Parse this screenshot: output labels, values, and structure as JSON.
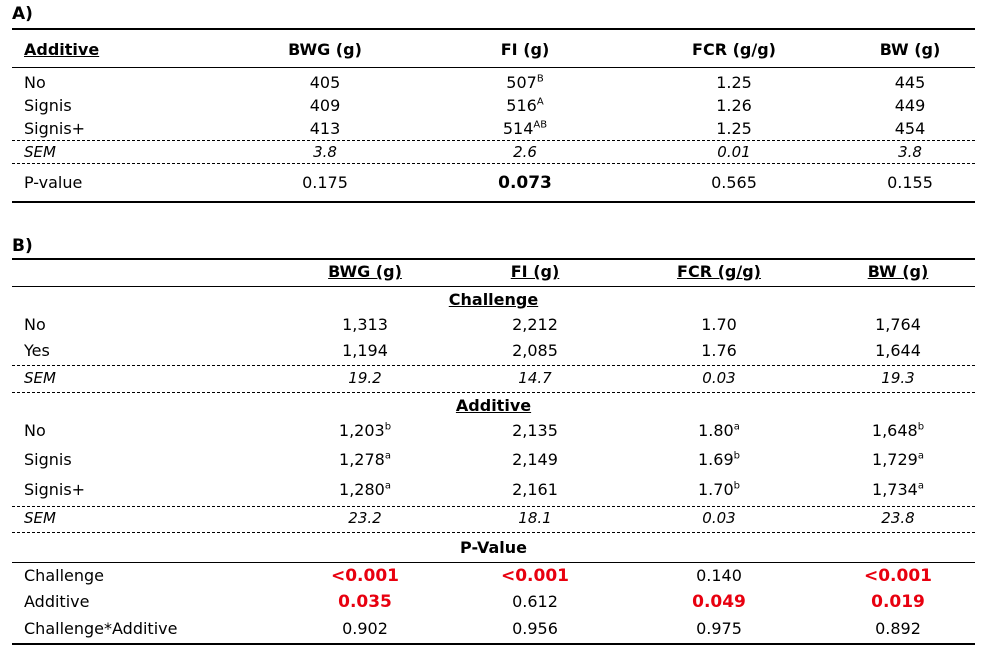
{
  "tableA": {
    "label": "A)",
    "headers": [
      "Additive",
      "BWG (g)",
      "FI (g)",
      "FCR (g/g)",
      "BW (g)"
    ],
    "rows": [
      {
        "name": "No",
        "bwg": "405",
        "fi": "507",
        "fi_sup": "B",
        "fcr": "1.25",
        "bw": "445"
      },
      {
        "name": "Signis",
        "bwg": "409",
        "fi": "516",
        "fi_sup": "A",
        "fcr": "1.26",
        "bw": "449"
      },
      {
        "name": "Signis+",
        "bwg": "413",
        "fi": "514",
        "fi_sup": "AB",
        "fcr": "1.25",
        "bw": "454"
      }
    ],
    "sem": {
      "name": "SEM",
      "bwg": "3.8",
      "fi": "2.6",
      "fcr": "0.01",
      "bw": "3.8"
    },
    "pvalue": {
      "name": "P-value",
      "bwg": "0.175",
      "fi": "0.073",
      "fcr": "0.565",
      "bw": "0.155"
    }
  },
  "tableB": {
    "label": "B)",
    "headers": [
      "BWG (g)",
      "FI (g)",
      "FCR (g/g)",
      "BW (g)"
    ],
    "challenge": {
      "title": "Challenge",
      "rows": [
        {
          "name": "No",
          "bwg": "1,313",
          "fi": "2,212",
          "fcr": "1.70",
          "bw": "1,764"
        },
        {
          "name": "Yes",
          "bwg": "1,194",
          "fi": "2,085",
          "fcr": "1.76",
          "bw": "1,644"
        }
      ],
      "sem": {
        "name": "SEM",
        "bwg": "19.2",
        "fi": "14.7",
        "fcr": "0.03",
        "bw": "19.3"
      }
    },
    "additive": {
      "title": "Additive",
      "rows": [
        {
          "name": "No",
          "bwg": "1,203",
          "bwg_sup": "b",
          "fi": "2,135",
          "fcr": "1.80",
          "fcr_sup": "a",
          "bw": "1,648",
          "bw_sup": "b"
        },
        {
          "name": "Signis",
          "bwg": "1,278",
          "bwg_sup": "a",
          "fi": "2,149",
          "fcr": "1.69",
          "fcr_sup": "b",
          "bw": "1,729",
          "bw_sup": "a"
        },
        {
          "name": "Signis+",
          "bwg": "1,280",
          "bwg_sup": "a",
          "fi": "2,161",
          "fcr": "1.70",
          "fcr_sup": "b",
          "bw": "1,734",
          "bw_sup": "a"
        }
      ],
      "sem": {
        "name": "SEM",
        "bwg": "23.2",
        "fi": "18.1",
        "fcr": "0.03",
        "bw": "23.8"
      }
    },
    "pvalue": {
      "title": "P-Value",
      "rows": [
        {
          "name": "Challenge",
          "bwg": "<0.001",
          "fi": "<0.001",
          "fcr": "0.140",
          "bw": "<0.001"
        },
        {
          "name": "Additive",
          "bwg": "0.035",
          "fi": "0.612",
          "fcr": "0.049",
          "bw": "0.019"
        },
        {
          "name": "Challenge*Additive",
          "bwg": "0.902",
          "fi": "0.956",
          "fcr": "0.975",
          "bw": "0.892"
        }
      ]
    },
    "highlight_color": "#e8000f"
  }
}
